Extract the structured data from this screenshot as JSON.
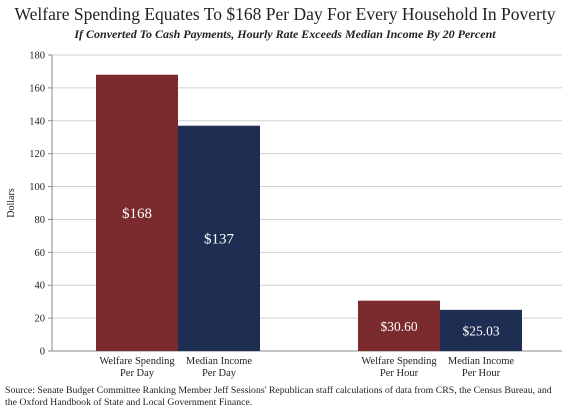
{
  "chart_data": {
    "type": "bar",
    "title": "Welfare Spending Equates To $168 Per Day For Every Household In Poverty",
    "subtitle": "If Converted To Cash Payments, Hourly Rate Exceeds Median Income By 20 Percent",
    "ylabel": "Dollars",
    "xlabel": "",
    "ylim": [
      0,
      180
    ],
    "yticks": [
      0,
      20,
      40,
      60,
      80,
      100,
      120,
      140,
      160,
      180
    ],
    "grid": true,
    "bars": [
      {
        "group": 0,
        "label": [
          "Welfare Spending",
          "Per Day"
        ],
        "value": 168,
        "data_label": "$168",
        "color": "#7b2a2e"
      },
      {
        "group": 0,
        "label": [
          "Median Income",
          "Per Day"
        ],
        "value": 137,
        "data_label": "$137",
        "color": "#1e2d52"
      },
      {
        "group": 1,
        "label": [
          "Welfare Spending",
          "Per Hour"
        ],
        "value": 30.6,
        "data_label": "$30.60",
        "color": "#7b2a2e"
      },
      {
        "group": 1,
        "label": [
          "Median Income",
          "Per Hour"
        ],
        "value": 25.03,
        "data_label": "$25.03",
        "color": "#1e2d52"
      }
    ],
    "source": "Source: Senate Budget Committee Ranking Member Jeff Sessions' Republican staff calculations of data from CRS, the Census Bureau, and the Oxford Handbook of State and Local Government Finance."
  }
}
